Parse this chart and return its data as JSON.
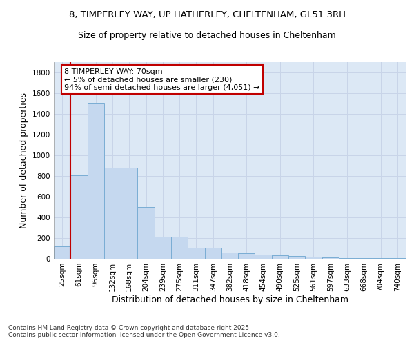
{
  "title_line1": "8, TIMPERLEY WAY, UP HATHERLEY, CHELTENHAM, GL51 3RH",
  "title_line2": "Size of property relative to detached houses in Cheltenham",
  "xlabel": "Distribution of detached houses by size in Cheltenham",
  "ylabel": "Number of detached properties",
  "categories": [
    "25sqm",
    "61sqm",
    "96sqm",
    "132sqm",
    "168sqm",
    "204sqm",
    "239sqm",
    "275sqm",
    "311sqm",
    "347sqm",
    "382sqm",
    "418sqm",
    "454sqm",
    "490sqm",
    "525sqm",
    "561sqm",
    "597sqm",
    "633sqm",
    "668sqm",
    "704sqm",
    "740sqm"
  ],
  "values": [
    120,
    810,
    1500,
    880,
    880,
    500,
    215,
    215,
    105,
    105,
    60,
    55,
    40,
    35,
    25,
    20,
    15,
    10,
    5,
    5,
    5
  ],
  "bar_color": "#c5d8ef",
  "bar_edge_color": "#7aadd4",
  "vline_color": "#c00000",
  "vline_x_index": 1,
  "annotation_text": "8 TIMPERLEY WAY: 70sqm\n← 5% of detached houses are smaller (230)\n94% of semi-detached houses are larger (4,051) →",
  "annotation_box_edgecolor": "#c00000",
  "ylim": [
    0,
    1900
  ],
  "yticks": [
    0,
    200,
    400,
    600,
    800,
    1000,
    1200,
    1400,
    1600,
    1800
  ],
  "grid_color": "#c8d4e8",
  "background_color": "#dce8f5",
  "footer_text": "Contains HM Land Registry data © Crown copyright and database right 2025.\nContains public sector information licensed under the Open Government Licence v3.0.",
  "title_fontsize": 9.5,
  "subtitle_fontsize": 9,
  "axis_label_fontsize": 9,
  "tick_fontsize": 7.5,
  "annotation_fontsize": 8,
  "footer_fontsize": 6.5
}
